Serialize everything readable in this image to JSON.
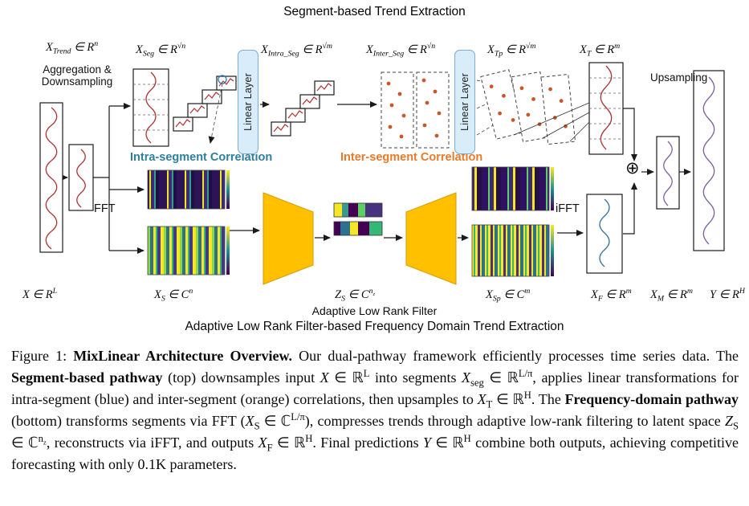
{
  "figure": {
    "top_title": "Segment-based Trend Extraction",
    "bottom_label": "Adaptive Low Rank Filter",
    "bottom_subtitle": "Adaptive Low Rank Filter-based Frequency Domain Trend Extraction",
    "labels": {
      "aggregation_downsampling": "Aggregation &\nDownsampling",
      "upsampling": "Upsampling",
      "intra_segment_correlation": "Intra-segment Correlation",
      "inter_segment_correlation": "Inter-segment Correlation",
      "fft": "FFT",
      "ifft": "iFFT",
      "linear_layer_1": "Linear Layer",
      "linear_layer_2": "Linear Layer",
      "sum_symbol": "⊕"
    },
    "math_labels": {
      "x_trend": "X_{Trend} ∈ R^{n}",
      "x_seg": "X_{Seg} ∈ R^{√n}",
      "x_intra_seg": "X_{Intra_Seg} ∈ R^{√m}",
      "x_inter_seg": "X_{Inter_Seg} ∈ R^{√n}",
      "x_tp": "X_{Tp} ∈ R^{√m}",
      "x_t": "X_{T} ∈ R^{m}",
      "x_input": "X ∈ R^{L}",
      "x_s": "X_{S} ∈ C^{n}",
      "z_s": "Z_{S} ∈ C^{n_{z}}",
      "x_sp": "X_{Sp} ∈ C^{m}",
      "x_f": "X_{F} ∈ R^{m}",
      "x_m": "X_{M} ∈ R^{m}",
      "y_out": "Y ∈ R^{H}"
    },
    "colors": {
      "intra-label": "#2e7f9e",
      "inter-label": "#e87a2a",
      "linear-layer-fill": "#d9ecf9",
      "linear-layer-border": "#7aadd4",
      "filter-fill": "#ffc000",
      "filter-border": "#d99a00",
      "series-red": "#b03030",
      "series-blue": "#2e6f9e",
      "series-purple": "#7b5fa0",
      "scatter-dot": "#c8582a"
    }
  },
  "caption": "Figure 1: **MixLinear Architecture Overview.** Our dual-pathway framework efficiently processes time series data. The **Segment-based pathway** (top) downsamples input *X* ∈ ℝ^{L} into segments *X*_{seg} ∈ ℝ^{L/π}, applies linear transformations for intra-segment (blue) and inter-segment (orange) correlations, then upsamples to *X*_{T} ∈ ℝ^{H}. The **Frequency-domain pathway** (bottom) transforms segments via FFT (*X*_{S} ∈ ℂ^{L/π}), compresses trends through adaptive low-rank filtering to latent space *Z*_{S} ∈ ℂ^{n_{z}}, reconstructs via iFFT, and outputs *X*_{F} ∈ ℝ^{H}. Final predictions *Y* ∈ ℝ^{H} combine both outputs, achieving competitive forecasting with only 0.1K parameters."
}
